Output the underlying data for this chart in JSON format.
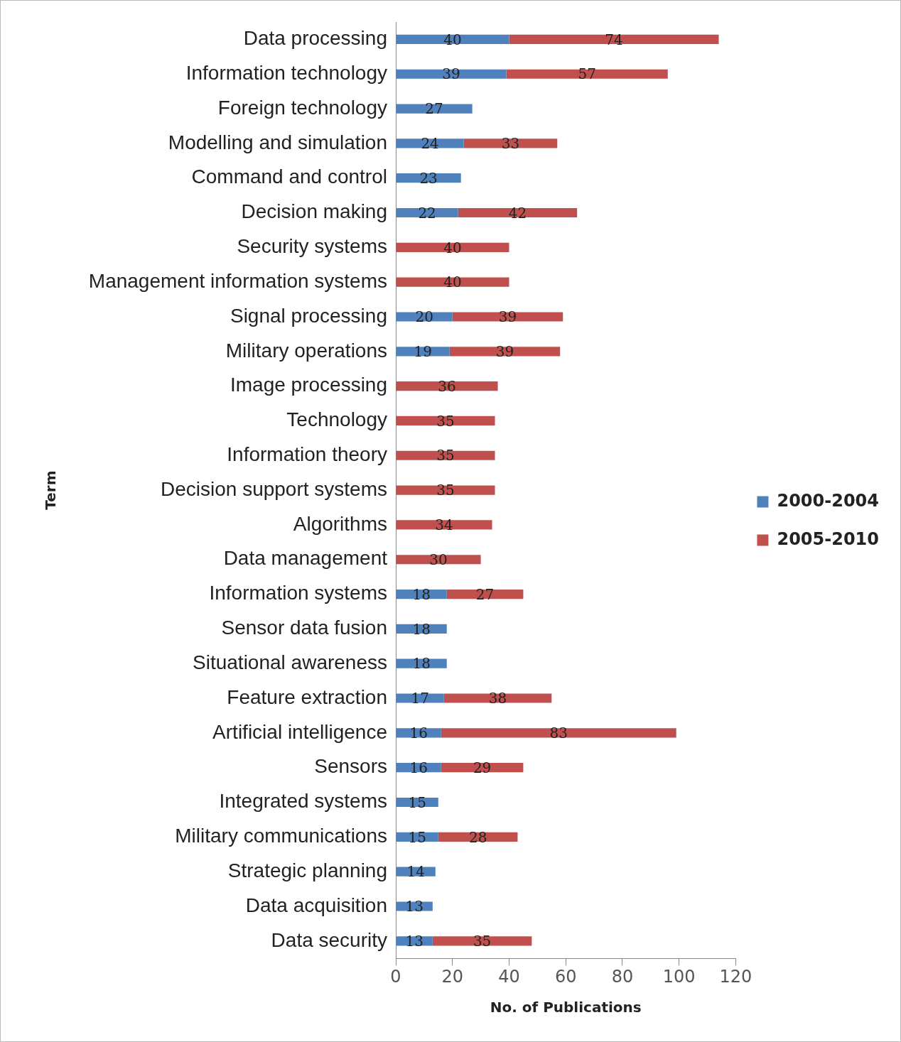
{
  "chart_data": {
    "type": "bar",
    "orientation": "horizontal",
    "stacked": true,
    "xlabel": "No. of Publications",
    "ylabel": "Term",
    "categories": [
      "Data processing",
      "Information technology",
      "Foreign technology",
      "Modelling and simulation",
      "Command and control",
      "Decision making",
      "Security systems",
      "Management information systems",
      "Signal processing",
      "Military operations",
      "Image processing",
      "Technology",
      "Information theory",
      "Decision support systems",
      "Algorithms",
      "Data management",
      "Information systems",
      "Sensor data fusion",
      "Situational awareness",
      "Feature extraction",
      "Artificial intelligence",
      "Sensors",
      "Integrated systems",
      "Military communications",
      "Strategic planning",
      "Data acquisition",
      "Data security"
    ],
    "series": [
      {
        "name": "2000-2004",
        "color": "#4f81bd",
        "values": [
          40,
          39,
          27,
          24,
          23,
          22,
          null,
          null,
          20,
          19,
          null,
          null,
          null,
          null,
          null,
          null,
          18,
          18,
          18,
          17,
          16,
          16,
          15,
          15,
          14,
          13,
          13
        ]
      },
      {
        "name": "2005-2010",
        "color": "#c0504d",
        "values": [
          74,
          57,
          null,
          33,
          null,
          42,
          40,
          40,
          39,
          39,
          36,
          35,
          35,
          35,
          34,
          30,
          27,
          null,
          null,
          38,
          83,
          29,
          null,
          28,
          null,
          null,
          35
        ]
      }
    ],
    "xlim": [
      0,
      120
    ],
    "xticks": [
      0,
      20,
      40,
      60,
      80,
      100,
      120
    ],
    "grid": false,
    "legend": "right",
    "data_labels": true
  }
}
